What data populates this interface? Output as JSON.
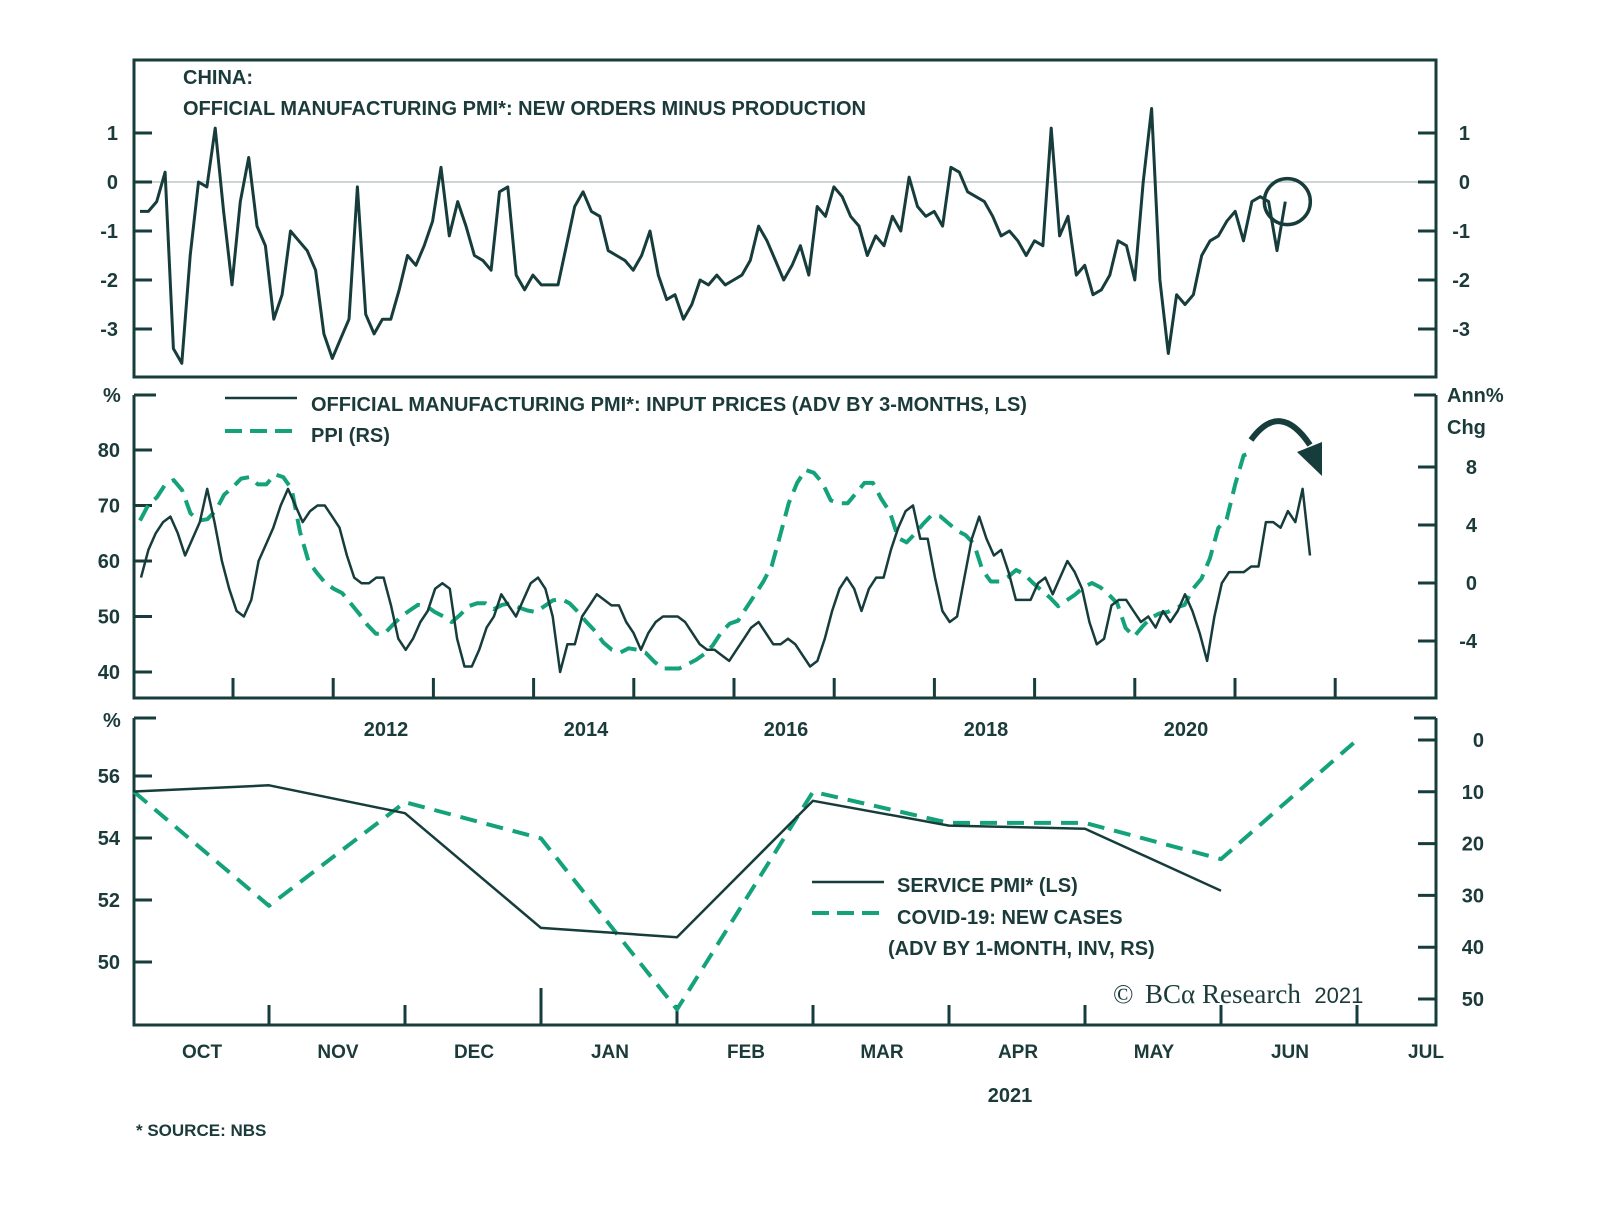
{
  "colors": {
    "dark": "#173c3c",
    "green": "#13a27a",
    "zero": "#bfc5c5"
  },
  "chart_data": [
    {
      "type": "line",
      "panel": "top",
      "title_lines": [
        "CHINA:",
        "OFFICIAL MANUFACTURING PMI*: NEW ORDERS MINUS PRODUCTION"
      ],
      "ylim": [
        -4.0,
        2.5
      ],
      "yticks": [
        1,
        0,
        -1,
        -2,
        -3
      ],
      "ytick_labels": [
        "1",
        "0",
        "-1",
        "-2",
        "-3"
      ],
      "zero_line": true,
      "x_start": "2010-01",
      "x_freq": "monthly",
      "annotation": "circle around latest reading",
      "series": [
        {
          "name": "New orders minus production",
          "style": "solid",
          "values": [
            -0.6,
            -0.6,
            -0.4,
            0.2,
            -3.4,
            -3.7,
            -1.5,
            0.0,
            -0.1,
            1.1,
            -0.6,
            -2.1,
            -0.4,
            0.5,
            -0.9,
            -1.3,
            -2.8,
            -2.3,
            -1.0,
            -1.2,
            -1.4,
            -1.8,
            -3.1,
            -3.6,
            -3.2,
            -2.8,
            -0.1,
            -2.7,
            -3.1,
            -2.8,
            -2.8,
            -2.2,
            -1.5,
            -1.7,
            -1.3,
            -0.8,
            0.3,
            -1.1,
            -0.4,
            -0.9,
            -1.5,
            -1.6,
            -1.8,
            -0.2,
            -0.1,
            -1.9,
            -2.2,
            -1.9,
            -2.1,
            -2.1,
            -2.1,
            -1.3,
            -0.5,
            -0.2,
            -0.6,
            -0.7,
            -1.4,
            -1.5,
            -1.6,
            -1.8,
            -1.5,
            -1.0,
            -1.9,
            -2.4,
            -2.3,
            -2.8,
            -2.5,
            -2.0,
            -2.1,
            -1.9,
            -2.1,
            -2.0,
            -1.9,
            -1.6,
            -0.9,
            -1.2,
            -1.6,
            -2.0,
            -1.7,
            -1.3,
            -1.9,
            -0.5,
            -0.7,
            -0.1,
            -0.3,
            -0.7,
            -0.9,
            -1.5,
            -1.1,
            -1.3,
            -0.7,
            -1.0,
            0.1,
            -0.5,
            -0.7,
            -0.6,
            -0.9,
            0.3,
            0.2,
            -0.2,
            -0.3,
            -0.4,
            -0.7,
            -1.1,
            -1.0,
            -1.2,
            -1.5,
            -1.2,
            -1.3,
            1.1,
            -1.1,
            -0.7,
            -1.9,
            -1.7,
            -2.3,
            -2.2,
            -1.9,
            -1.2,
            -1.3,
            -2.0,
            0.0,
            1.5,
            -2.0,
            -3.5,
            -2.3,
            -2.5,
            -2.3,
            -1.5,
            -1.2,
            -1.1,
            -0.8,
            -0.6,
            -1.2,
            -0.4,
            -0.3,
            -0.4,
            -1.4,
            -0.4
          ]
        }
      ]
    },
    {
      "type": "line",
      "panel": "middle",
      "legend": [
        {
          "label": "OFFICIAL MANUFACTURING PMI*: INPUT PRICES (ADV BY 3-MONTHS, LS)",
          "style": "solid"
        },
        {
          "label": "PPI (RS)",
          "style": "dashed"
        }
      ],
      "ylabel_left": "%",
      "ylabel_right": [
        "Ann%",
        "Chg"
      ],
      "ylim_left": [
        35,
        90
      ],
      "yticks_left": [
        80,
        70,
        60,
        50,
        40
      ],
      "ylim_right": [
        -8,
        11
      ],
      "yticks_right": [
        8,
        4,
        0,
        -4
      ],
      "xtick_labels": [
        "2012",
        "2014",
        "2016",
        "2018",
        "2020"
      ],
      "x_start": "2010-01",
      "x_freq": "monthly",
      "annotation": "curved arrow pointing down at latest values",
      "series": [
        {
          "name": "PMI input prices (adv 3m)",
          "style": "solid",
          "axis": "left",
          "values": [
            57,
            62,
            65,
            67,
            68,
            65,
            61,
            64,
            67,
            73,
            67,
            60,
            55,
            51,
            50,
            53,
            60,
            63,
            66,
            70,
            73,
            70,
            67,
            69,
            70,
            70,
            68,
            66,
            61,
            57,
            56,
            56,
            57,
            57,
            52,
            46,
            44,
            46,
            49,
            51,
            55,
            56,
            55,
            46,
            41,
            41,
            44,
            48,
            50,
            54,
            52,
            50,
            53,
            56,
            57,
            55,
            50,
            40,
            45,
            45,
            50,
            52,
            54,
            53,
            52,
            52,
            49,
            47,
            44,
            47,
            49,
            50,
            50,
            50,
            49,
            47,
            45,
            44,
            44,
            43,
            42,
            44,
            46,
            48,
            49,
            47,
            45,
            45,
            46,
            45,
            43,
            41,
            42,
            46,
            51,
            55,
            57,
            55,
            51,
            55,
            57,
            57,
            62,
            66,
            69,
            70,
            64,
            64,
            57,
            51,
            49,
            50,
            57,
            64,
            68,
            64,
            61,
            62,
            58,
            53,
            53,
            53,
            56,
            57,
            54,
            57,
            60,
            58,
            55,
            49,
            45,
            46,
            52,
            53,
            53,
            51,
            49,
            50,
            48,
            51,
            49,
            51,
            54,
            51,
            47,
            42,
            50,
            56,
            58,
            58,
            58,
            59,
            59,
            67,
            67,
            66,
            69,
            67,
            73,
            61
          ]
        },
        {
          "name": "PPI",
          "style": "dashed",
          "axis": "right",
          "values": [
            4.3,
            5.4,
            5.9,
            6.8,
            7.1,
            6.4,
            4.8,
            4.3,
            4.4,
            5.0,
            6.1,
            6.6,
            7.2,
            7.3,
            6.8,
            6.8,
            7.5,
            7.3,
            6.5,
            3.5,
            1.5,
            0.7,
            0.0,
            -0.4,
            -0.7,
            -1.4,
            -2.1,
            -2.9,
            -3.5,
            -3.5,
            -2.9,
            -2.3,
            -1.9,
            -1.5,
            -1.6,
            -2.0,
            -2.3,
            -2.7,
            -2.2,
            -1.6,
            -1.4,
            -1.4,
            -1.8,
            -1.5,
            -1.4,
            -1.7,
            -1.9,
            -2.0,
            -1.6,
            -1.2,
            -1.1,
            -1.4,
            -2.0,
            -2.7,
            -3.3,
            -4.1,
            -4.6,
            -4.8,
            -4.5,
            -4.6,
            -4.8,
            -5.4,
            -5.9,
            -5.9,
            -5.9,
            -5.6,
            -5.3,
            -4.9,
            -4.3,
            -3.4,
            -2.8,
            -2.6,
            -1.7,
            -0.8,
            0.1,
            1.2,
            3.3,
            5.5,
            6.9,
            7.8,
            7.6,
            6.9,
            5.7,
            5.5,
            5.5,
            6.2,
            6.9,
            6.9,
            5.8,
            4.9,
            3.1,
            2.8,
            3.4,
            4.1,
            4.7,
            4.6,
            4.1,
            3.6,
            3.3,
            2.7,
            0.9,
            0.1,
            0.1,
            0.4,
            0.9,
            0.6,
            0.0,
            -0.5,
            -1.0,
            -1.6,
            -1.2,
            -0.8,
            -0.3,
            0.0,
            -0.3,
            -0.8,
            -1.4,
            -3.1,
            -3.7,
            -3.0,
            -2.4,
            -2.1,
            -2.0,
            -1.7,
            -1.5,
            -0.4,
            0.3,
            1.7,
            3.8,
            4.4,
            6.8,
            8.8,
            9.0
          ]
        }
      ]
    },
    {
      "type": "line",
      "panel": "bottom",
      "legend": [
        {
          "label": "SERVICE PMI* (LS)",
          "style": "solid"
        },
        {
          "label": "COVID-19: NEW CASES",
          "label2": "(ADV BY 1-MONTH, INV, RS)",
          "style": "dashed"
        }
      ],
      "ylabel_left": "%",
      "ylim_left": [
        48,
        57.5
      ],
      "yticks_left": [
        56,
        54,
        52,
        50
      ],
      "ylim_right_inverted": [
        -3,
        56
      ],
      "yticks_right": [
        0,
        10,
        20,
        30,
        40,
        50
      ],
      "categories": [
        "OCT",
        "NOV",
        "DEC",
        "JAN",
        "FEB",
        "MAR",
        "APR",
        "MAY",
        "JUN",
        "JUL"
      ],
      "xlabel": "2021",
      "series": [
        {
          "name": "Service PMI",
          "style": "solid",
          "axis": "left",
          "points": [
            [
              "2020-09-15",
              55.5
            ],
            [
              "2020-10-31",
              55.7
            ],
            [
              "2020-11-30",
              54.8
            ],
            [
              "2020-12-31",
              51.1
            ],
            [
              "2021-01-31",
              50.8
            ],
            [
              "2021-02-28",
              55.2
            ],
            [
              "2021-03-31",
              54.4
            ],
            [
              "2021-04-30",
              54.3
            ],
            [
              "2021-05-31",
              52.3
            ]
          ]
        },
        {
          "name": "COVID-19 new cases (inverted)",
          "style": "dashed",
          "axis": "right",
          "points": [
            [
              "2020-09-15",
              10
            ],
            [
              "2020-10-31",
              32
            ],
            [
              "2020-11-30",
              12
            ],
            [
              "2020-12-31",
              19
            ],
            [
              "2021-01-31",
              52
            ],
            [
              "2021-02-28",
              10
            ],
            [
              "2021-03-31",
              16
            ],
            [
              "2021-04-30",
              16
            ],
            [
              "2021-05-31",
              23
            ],
            [
              "2021-06-30",
              0
            ]
          ]
        }
      ]
    }
  ],
  "copyright": {
    "symbol": "©",
    "brand": "BCα Research",
    "year": "2021"
  },
  "footnote": "* SOURCE: NBS"
}
